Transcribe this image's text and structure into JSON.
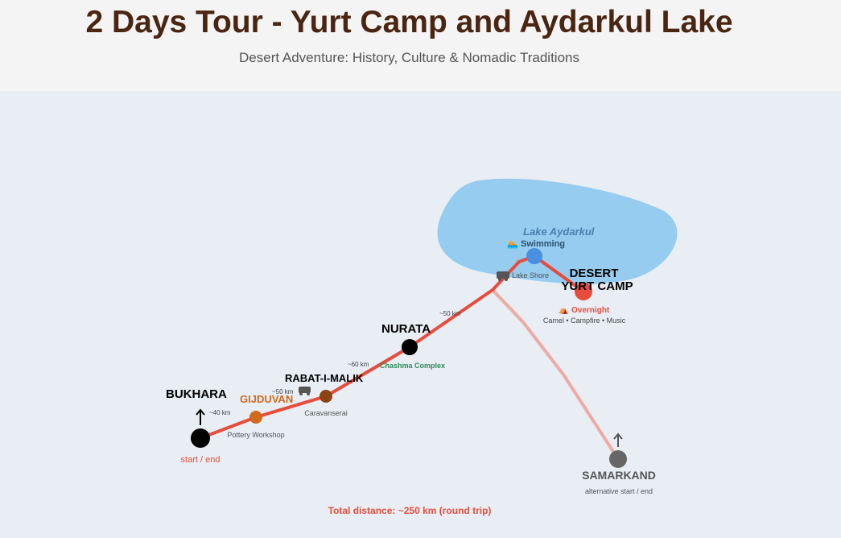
{
  "header": {
    "title": "2 Days Tour - Yurt Camp and Aydarkul Lake",
    "subtitle": "Desert Adventure: History, Culture & Nomadic Traditions"
  },
  "colors": {
    "route": "#e74c3c",
    "alt_route": "#f0a8a0",
    "lake": "#8cc8ee",
    "bukhara": "#000000",
    "gijduvan": "#d2691e",
    "rabat": "#8b4513",
    "nurata": "#000000",
    "lake_stop": "#4a8fe0",
    "yurt": "#e74c3c",
    "samarkand": "#666666"
  },
  "lake": {
    "name": "Lake Aydarkul",
    "activity": "Swimming",
    "shore": "Lake Shore"
  },
  "stops": {
    "bukhara": {
      "name": "BUKHARA",
      "note": "start / end"
    },
    "gijduvan": {
      "name": "GIJDUVAN",
      "note": "Pottery Workshop"
    },
    "rabat": {
      "name": "RABAT-I-MALIK",
      "note": "Caravanserai"
    },
    "nurata": {
      "name": "NURATA",
      "note": "Chashma Complex"
    },
    "yurt": {
      "name_line1": "DESERT",
      "name_line2": "YURT CAMP",
      "note": "Overnight",
      "activities": "Camel • Campfire • Music"
    },
    "samarkand": {
      "name": "SAMARKAND",
      "note": "alternative start / end"
    }
  },
  "distances": [
    "~40 km",
    "~50 km",
    "~60 km",
    "~50 km"
  ],
  "total": "Total distance: ~250 km (round trip)"
}
